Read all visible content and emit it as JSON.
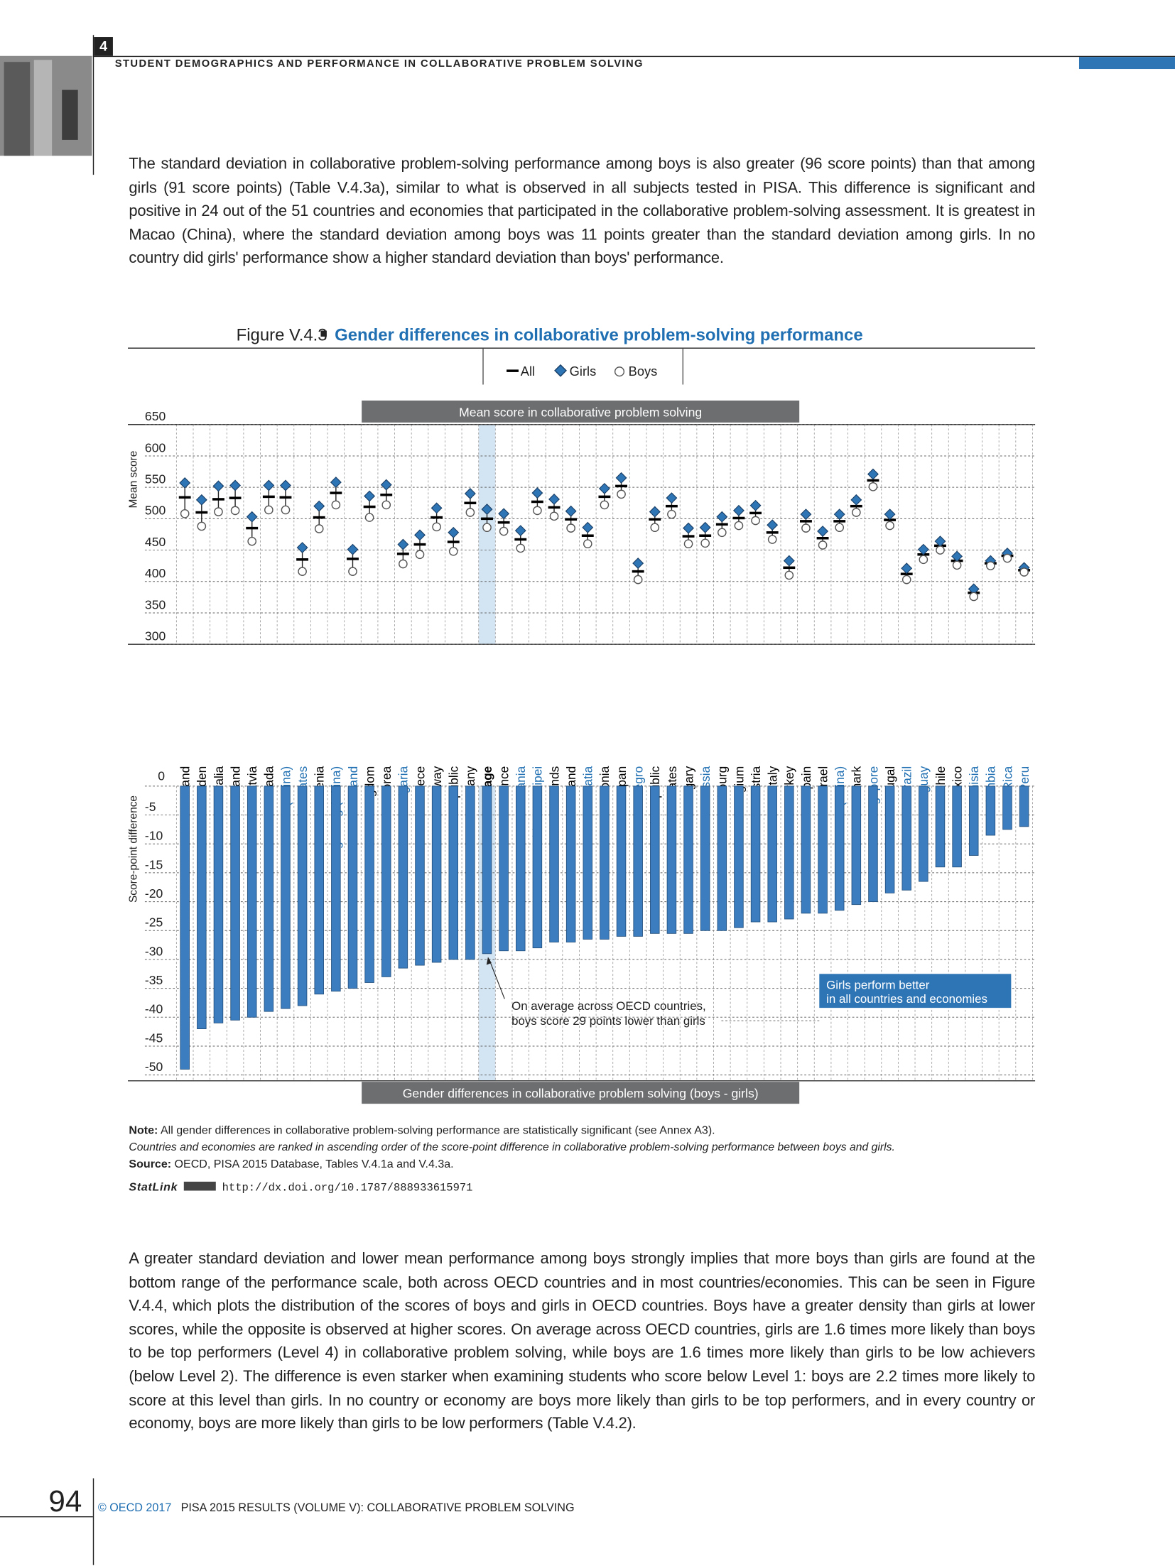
{
  "header": {
    "chapter": "4",
    "running_title": "STUDENT DEMOGRAPHICS AND PERFORMANCE IN COLLABORATIVE PROBLEM SOLVING"
  },
  "paragraphs": [
    "The standard deviation in collaborative problem-solving performance among boys is also greater (96 score points) than that among girls (91 score points) (Table V.4.3a), similar to what is observed in all subjects tested in PISA. This difference is significant and positive in 24 out of the 51 countries and economies that participated in the collaborative problem-solving assessment. It is greatest in Macao (China), where the standard deviation among boys was 11 points greater than the standard deviation among girls. In no country did girls' performance show a higher standard deviation than boys' performance.",
    "A greater standard deviation and lower mean performance among boys strongly implies that more boys than girls are found at the bottom range of the performance scale, both across OECD countries and in most countries/economies. This can be seen in Figure V.4.4, which plots the distribution of the scores of boys and girls in OECD countries. Boys have a greater density than girls at lower scores, while the opposite is observed at higher scores. On average across OECD countries, girls are 1.6 times more likely than boys to be top performers (Level 4) in collaborative problem solving, while boys are 1.6 times more likely than girls to be low achievers (below Level 2). The difference is even starker when examining students who score below Level 1: boys are 2.2 times more likely to score at this level than girls. In no country or economy are boys more likely than girls to be top performers, and in every country or economy, boys are more likely than girls to be low performers (Table V.4.2)."
  ],
  "figure": {
    "label": "Figure V.4.3",
    "title": "Gender differences in collaborative problem-solving performance"
  },
  "chart_data": [
    {
      "type": "dot",
      "title": "Mean score in collaborative problem solving",
      "y_label": "Mean score",
      "categories": [
        "Finland",
        "Sweden",
        "Australia",
        "New Zealand",
        "Latvia",
        "Canada",
        "Macao (China)",
        "United Arab Emirates",
        "Slovenia",
        "Hong Kong (China)",
        "Thailand",
        "United Kingdom",
        "Korea",
        "Bulgaria",
        "Greece",
        "Norway",
        "Slovak Republic",
        "Germany",
        "OECD average",
        "France",
        "Lithuania",
        "Chinese Taipei",
        "Netherlands",
        "Iceland",
        "Croatia",
        "Estonia",
        "Japan",
        "Montenegro",
        "Czech Republic",
        "United States",
        "Hungary",
        "Russia",
        "Luxembourg",
        "Belgium",
        "Austria",
        "Italy",
        "Turkey",
        "Spain",
        "Israel",
        "B-S-J-G (China)",
        "Denmark",
        "Singapore",
        "Portugal",
        "Brazil",
        "Uruguay",
        "Chile",
        "Mexico",
        "Tunisia",
        "Colombia",
        "Costa Rica",
        "Peru"
      ],
      "category_colors": [
        "#000000",
        "#000000",
        "#000000",
        "#000000",
        "#000000",
        "#000000",
        "#1f6fb2",
        "#1f6fb2",
        "#000000",
        "#1f6fb2",
        "#1f6fb2",
        "#000000",
        "#000000",
        "#1f6fb2",
        "#000000",
        "#000000",
        "#000000",
        "#000000",
        "#000000",
        "#000000",
        "#1f6fb2",
        "#1f6fb2",
        "#000000",
        "#000000",
        "#1f6fb2",
        "#000000",
        "#000000",
        "#1f6fb2",
        "#000000",
        "#000000",
        "#000000",
        "#1f6fb2",
        "#000000",
        "#000000",
        "#000000",
        "#000000",
        "#000000",
        "#000000",
        "#000000",
        "#1f6fb2",
        "#000000",
        "#1f6fb2",
        "#000000",
        "#1f6fb2",
        "#1f6fb2",
        "#000000",
        "#000000",
        "#1f6fb2",
        "#1f6fb2",
        "#1f6fb2",
        "#1f6fb2"
      ],
      "highlight_index": 18,
      "highlight_color": "#d3e4f3",
      "series": [
        {
          "name": "All",
          "color": "#000000",
          "values": [
            534,
            510,
            531,
            533,
            485,
            535,
            534,
            435,
            502,
            541,
            436,
            519,
            538,
            444,
            459,
            502,
            463,
            525,
            500,
            494,
            467,
            527,
            518,
            499,
            473,
            535,
            552,
            416,
            499,
            520,
            472,
            473,
            491,
            501,
            509,
            478,
            422,
            496,
            469,
            496,
            520,
            561,
            498,
            412,
            443,
            457,
            433,
            382,
            429,
            441,
            418
          ]
        },
        {
          "name": "Girls",
          "color": "#2e75b6",
          "values": [
            557,
            530,
            552,
            553,
            503,
            553,
            553,
            454,
            520,
            558,
            451,
            536,
            554,
            459,
            474,
            517,
            478,
            540,
            515,
            508,
            481,
            541,
            531,
            512,
            486,
            548,
            565,
            429,
            511,
            533,
            485,
            486,
            503,
            513,
            521,
            490,
            433,
            507,
            480,
            507,
            530,
            571,
            507,
            421,
            451,
            464,
            440,
            388,
            433,
            445,
            422
          ]
        },
        {
          "name": "Boys",
          "color": "#ffffff",
          "values": [
            508,
            488,
            511,
            513,
            464,
            514,
            514,
            416,
            484,
            522,
            416,
            502,
            522,
            428,
            443,
            487,
            448,
            510,
            486,
            480,
            453,
            513,
            504,
            485,
            460,
            522,
            539,
            403,
            486,
            507,
            460,
            461,
            478,
            489,
            497,
            467,
            410,
            485,
            458,
            486,
            510,
            551,
            489,
            403,
            435,
            450,
            426,
            376,
            425,
            437,
            415
          ]
        }
      ],
      "ylim": [
        300,
        650
      ],
      "yticks": [
        300,
        350,
        400,
        450,
        500,
        550,
        600,
        650
      ],
      "grid": true
    },
    {
      "type": "bar",
      "title": "Gender differences in collaborative problem solving (boys - girls)",
      "y_label": "Score-point difference",
      "color": "#3b7dbf",
      "values": [
        -49,
        -42,
        -41,
        -40.5,
        -40,
        -39,
        -38.5,
        -38,
        -36,
        -35.5,
        -35,
        -34,
        -33,
        -31.5,
        -31,
        -30.5,
        -30,
        -30,
        -29,
        -28.5,
        -28.5,
        -28,
        -27,
        -27,
        -26.5,
        -26.5,
        -26,
        -26,
        -25.5,
        -25.5,
        -25.5,
        -25,
        -25,
        -24.5,
        -23.5,
        -23.5,
        -23,
        -22,
        -22,
        -21.5,
        -20.5,
        -20,
        -18.5,
        -18,
        -16.5,
        -14,
        -14,
        -12,
        -8.5,
        -7.5,
        -7
      ],
      "ylim": [
        -51,
        0
      ],
      "yticks": [
        0,
        -5,
        -10,
        -15,
        -20,
        -25,
        -30,
        -35,
        -40,
        -45,
        -50
      ],
      "grid": true,
      "annotations": [
        [
          "On average across OECD countries,",
          "boys score 29 points lower than girls"
        ],
        [
          "Girls perform better",
          "in all countries and economies"
        ]
      ]
    }
  ],
  "notes": {
    "note_label": "Note:",
    "note": "All gender differences in collaborative problem-solving performance are statistically significant (see Annex A3).",
    "ranking": "Countries and economies are ranked in ascending order of the score-point difference in collaborative problem-solving performance between boys and girls.",
    "source_label": "Source:",
    "source": "OECD, PISA 2015 Database, Tables V.4.1a and V.4.3a.",
    "statlink_label": "StatLink",
    "statlink_url": "http://dx.doi.org/10.1787/888933615971"
  },
  "footer": {
    "page_number": "94",
    "copyright": "© OECD 2017",
    "publication": "PISA 2015 RESULTS (VOLUME V): COLLABORATIVE PROBLEM SOLVING"
  }
}
